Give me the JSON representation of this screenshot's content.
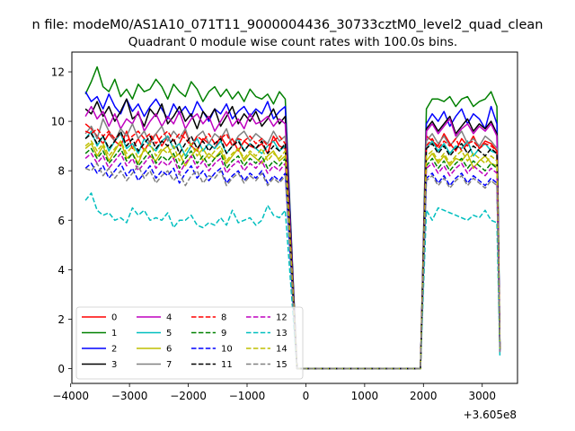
{
  "chart_data": {
    "type": "line",
    "suptitle": "n file: modeM0/AS1A10_071T11_9000004436_30733cztM0_level2_quad_clean",
    "title": "Quadrant 0 module wise count rates with 100.0s bins.",
    "xlabel": "",
    "ylabel": "",
    "offset_text": "+3.605e8",
    "xlim": [
      -3980,
      3600
    ],
    "ylim": [
      -0.6,
      12.8
    ],
    "x_ticks": [
      -4000,
      -3000,
      -2000,
      -1000,
      0,
      1000,
      2000,
      3000
    ],
    "x_tick_labels": [
      "−4000",
      "−3000",
      "−2000",
      "−1000",
      "0",
      "1000",
      "2000",
      "3000"
    ],
    "y_ticks": [
      0,
      2,
      4,
      6,
      8,
      10,
      12
    ],
    "y_tick_labels": [
      "0",
      "2",
      "4",
      "6",
      "8",
      "10",
      "12"
    ],
    "grid": false,
    "legend_position": "lower-left",
    "legend_columns": 4,
    "segments": {
      "first": {
        "x_start": -3750,
        "step": 100,
        "count": 35
      },
      "gap": {
        "x_start": -150,
        "x_end": 1950,
        "value": 0
      },
      "second": {
        "x_start": 2050,
        "step": 100,
        "count": 13
      }
    },
    "series": [
      {
        "name": "0",
        "color": "#ff0000",
        "dash": false,
        "seg1": [
          9.9,
          9.7,
          9.4,
          9.1,
          9.5,
          9.2,
          9.0,
          9.6,
          8.9,
          9.3,
          8.8,
          9.2,
          9.5,
          9.0,
          9.4,
          8.9,
          9.1,
          9.6,
          9.0,
          8.8,
          9.3,
          9.1,
          8.9,
          9.4,
          9.0,
          9.3,
          8.8,
          9.2,
          9.0,
          8.9,
          9.1,
          8.7,
          9.4,
          9.0,
          8.9
        ],
        "seg2": [
          9.4,
          9.2,
          9.0,
          9.5,
          9.1,
          8.8,
          9.3,
          9.0,
          9.4,
          8.9,
          9.2,
          9.1,
          8.8
        ]
      },
      {
        "name": "1",
        "color": "#008000",
        "dash": false,
        "seg1": [
          11.1,
          11.6,
          12.2,
          11.4,
          11.2,
          11.7,
          11.0,
          11.3,
          10.9,
          11.5,
          11.2,
          11.3,
          11.7,
          11.4,
          10.9,
          11.5,
          11.2,
          11.0,
          11.6,
          11.3,
          10.8,
          11.2,
          11.4,
          11.0,
          11.3,
          10.9,
          11.2,
          10.8,
          11.3,
          11.0,
          10.9,
          11.1,
          10.7,
          11.2,
          10.9
        ],
        "seg2": [
          10.5,
          10.9,
          10.9,
          10.8,
          11.0,
          10.6,
          10.9,
          11.0,
          10.6,
          10.8,
          10.9,
          11.2,
          10.6
        ]
      },
      {
        "name": "2",
        "color": "#0000ff",
        "dash": false,
        "seg1": [
          11.2,
          10.8,
          11.0,
          10.5,
          11.1,
          10.6,
          10.3,
          10.9,
          10.4,
          10.7,
          10.2,
          10.6,
          10.9,
          10.5,
          10.1,
          10.7,
          10.3,
          10.6,
          10.2,
          10.8,
          10.4,
          10.0,
          10.5,
          10.3,
          10.7,
          10.1,
          10.4,
          10.6,
          10.2,
          10.5,
          10.3,
          10.8,
          10.1,
          10.4,
          10.6
        ],
        "seg2": [
          9.9,
          10.3,
          10.0,
          10.4,
          9.8,
          10.2,
          10.5,
          9.9,
          10.3,
          10.1,
          9.7,
          10.6,
          9.9
        ]
      },
      {
        "name": "3",
        "color": "#000000",
        "dash": false,
        "seg1": [
          10.5,
          10.3,
          10.8,
          10.2,
          10.6,
          10.0,
          10.4,
          10.9,
          10.1,
          10.3,
          9.8,
          10.5,
          10.2,
          10.7,
          9.9,
          10.2,
          10.6,
          10.0,
          10.3,
          9.7,
          10.4,
          10.1,
          10.5,
          9.8,
          10.2,
          10.6,
          9.9,
          10.3,
          10.0,
          10.4,
          9.8,
          10.1,
          10.5,
          9.9,
          10.2
        ],
        "seg2": [
          9.7,
          10.0,
          9.6,
          9.9,
          10.2,
          9.5,
          9.8,
          10.1,
          9.6,
          9.9,
          9.7,
          10.0,
          9.5
        ]
      },
      {
        "name": "4",
        "color": "#bf00bf",
        "dash": false,
        "seg1": [
          10.2,
          10.6,
          10.1,
          10.4,
          9.8,
          10.3,
          9.7,
          10.1,
          9.9,
          10.4,
          9.6,
          10.0,
          10.3,
          9.8,
          10.2,
          9.9,
          10.4,
          9.7,
          10.1,
          10.3,
          9.9,
          10.2,
          9.6,
          10.0,
          10.4,
          9.8,
          10.1,
          9.7,
          10.3,
          9.9,
          10.0,
          10.2,
          9.8,
          10.1,
          9.9
        ],
        "seg2": [
          9.6,
          9.9,
          9.5,
          9.8,
          10.1,
          9.4,
          9.7,
          9.9,
          9.5,
          9.8,
          9.6,
          9.9,
          9.4
        ]
      },
      {
        "name": "5",
        "color": "#00bfbf",
        "dash": false,
        "seg1": [
          9.3,
          9.6,
          9.0,
          9.4,
          8.8,
          9.2,
          9.5,
          8.9,
          9.1,
          8.7,
          9.3,
          9.0,
          8.8,
          9.2,
          9.4,
          8.9,
          9.1,
          8.6,
          9.0,
          9.3,
          8.8,
          9.1,
          8.9,
          9.2,
          8.7,
          9.0,
          9.3,
          8.8,
          9.1,
          8.9,
          8.7,
          9.0,
          9.2,
          8.8,
          9.0
        ],
        "seg2": [
          8.9,
          9.2,
          8.8,
          9.1,
          8.7,
          9.0,
          8.9,
          9.2,
          8.6,
          8.9,
          9.1,
          8.8,
          8.7
        ]
      },
      {
        "name": "6",
        "color": "#bfbf00",
        "dash": false,
        "seg1": [
          8.9,
          9.1,
          8.6,
          9.0,
          8.4,
          8.8,
          9.2,
          8.5,
          8.7,
          8.3,
          8.9,
          8.6,
          8.4,
          8.8,
          9.0,
          8.5,
          8.7,
          8.2,
          8.6,
          8.9,
          8.4,
          8.7,
          8.5,
          8.8,
          8.3,
          8.6,
          8.9,
          8.4,
          8.7,
          8.5,
          8.3,
          8.6,
          8.8,
          8.4,
          8.6
        ],
        "seg2": [
          8.4,
          8.7,
          8.3,
          8.6,
          8.2,
          8.5,
          8.4,
          8.7,
          8.1,
          8.4,
          8.6,
          8.3,
          8.2
        ]
      },
      {
        "name": "7",
        "color": "#808080",
        "dash": false,
        "seg1": [
          9.5,
          9.8,
          9.3,
          10.1,
          9.6,
          9.2,
          9.7,
          9.4,
          9.9,
          9.3,
          9.6,
          9.1,
          9.5,
          9.8,
          9.2,
          9.6,
          9.3,
          9.7,
          9.0,
          9.4,
          9.6,
          9.1,
          9.5,
          9.3,
          9.7,
          9.0,
          9.4,
          9.6,
          9.2,
          9.5,
          9.3,
          9.1,
          9.6,
          9.2,
          9.4
        ],
        "seg2": [
          9.2,
          9.5,
          9.1,
          9.4,
          9.0,
          9.3,
          9.6,
          9.1,
          9.3,
          9.0,
          9.4,
          9.2,
          8.9
        ]
      },
      {
        "name": "8",
        "color": "#ff0000",
        "dash": true,
        "seg1": [
          9.6,
          9.5,
          9.7,
          9.4,
          9.6,
          9.3,
          9.5,
          9.2,
          9.4,
          9.6,
          9.3,
          9.5,
          9.1,
          9.4,
          9.6,
          9.2,
          9.5,
          9.3,
          9.0,
          9.4,
          9.2,
          9.5,
          9.1,
          9.3,
          9.5,
          9.0,
          9.3,
          9.2,
          9.4,
          9.1,
          9.3,
          9.0,
          9.2,
          9.4,
          9.1
        ],
        "seg2": [
          9.0,
          9.3,
          8.9,
          9.2,
          9.0,
          9.3,
          8.8,
          9.1,
          9.2,
          8.9,
          9.1,
          9.0,
          8.8
        ]
      },
      {
        "name": "9",
        "color": "#008000",
        "dash": true,
        "seg1": [
          8.7,
          8.9,
          8.5,
          8.8,
          8.3,
          8.6,
          8.9,
          8.4,
          8.7,
          8.2,
          8.5,
          8.8,
          8.3,
          8.6,
          8.4,
          8.7,
          8.1,
          8.5,
          8.8,
          8.3,
          8.6,
          8.2,
          8.5,
          8.7,
          8.1,
          8.4,
          8.6,
          8.2,
          8.5,
          8.3,
          8.6,
          8.1,
          8.4,
          8.2,
          8.5
        ],
        "seg2": [
          8.2,
          8.5,
          8.1,
          8.4,
          8.0,
          8.3,
          8.5,
          8.1,
          8.4,
          8.2,
          8.0,
          8.3,
          8.1
        ]
      },
      {
        "name": "10",
        "color": "#0000ff",
        "dash": true,
        "seg1": [
          8.1,
          8.3,
          7.9,
          8.2,
          7.7,
          8.0,
          8.3,
          7.8,
          8.1,
          7.6,
          7.9,
          8.2,
          7.7,
          8.0,
          7.8,
          8.1,
          7.5,
          7.9,
          8.2,
          7.7,
          8.0,
          7.6,
          7.9,
          8.1,
          7.5,
          7.8,
          8.0,
          7.6,
          7.9,
          7.7,
          8.0,
          7.5,
          7.8,
          7.6,
          7.9
        ],
        "seg2": [
          7.7,
          7.9,
          7.5,
          7.8,
          7.4,
          7.7,
          7.9,
          7.5,
          7.8,
          7.6,
          7.4,
          7.7,
          7.5
        ]
      },
      {
        "name": "11",
        "color": "#000000",
        "dash": true,
        "seg1": [
          9.3,
          9.5,
          9.1,
          9.4,
          8.9,
          9.2,
          9.6,
          9.0,
          9.3,
          8.8,
          9.1,
          9.4,
          8.9,
          9.2,
          9.0,
          9.3,
          8.7,
          9.1,
          9.4,
          8.9,
          9.2,
          8.8,
          9.1,
          9.3,
          8.7,
          9.0,
          9.2,
          8.8,
          9.1,
          8.9,
          9.2,
          8.7,
          9.0,
          8.8,
          9.1
        ],
        "seg2": [
          8.9,
          9.1,
          8.7,
          9.0,
          8.6,
          8.9,
          9.1,
          8.7,
          9.0,
          8.8,
          8.6,
          8.9,
          8.7
        ]
      },
      {
        "name": "12",
        "color": "#bf00bf",
        "dash": true,
        "seg1": [
          8.5,
          8.7,
          8.3,
          8.6,
          8.1,
          8.4,
          8.7,
          8.2,
          8.5,
          8.0,
          8.3,
          8.6,
          8.1,
          8.4,
          8.2,
          8.5,
          7.9,
          8.3,
          8.6,
          8.1,
          8.4,
          8.0,
          8.3,
          8.5,
          7.9,
          8.2,
          8.4,
          8.0,
          8.3,
          8.1,
          8.4,
          7.9,
          8.2,
          8.0,
          8.3
        ],
        "seg2": [
          8.1,
          8.3,
          7.9,
          8.2,
          7.8,
          8.1,
          8.3,
          7.9,
          8.2,
          8.0,
          7.8,
          8.1,
          7.9
        ]
      },
      {
        "name": "13",
        "color": "#00bfbf",
        "dash": true,
        "seg1": [
          6.8,
          7.1,
          6.4,
          6.2,
          6.3,
          6.0,
          6.1,
          5.9,
          6.5,
          6.2,
          6.4,
          6.0,
          6.1,
          6.0,
          6.3,
          5.7,
          6.0,
          6.0,
          6.2,
          5.8,
          5.7,
          5.9,
          5.8,
          6.1,
          5.8,
          6.4,
          5.9,
          6.0,
          6.1,
          5.8,
          6.0,
          6.6,
          6.2,
          6.1,
          6.4
        ],
        "seg2": [
          6.4,
          6.0,
          6.5,
          6.4,
          6.3,
          6.2,
          6.1,
          6.0,
          6.2,
          6.1,
          6.4,
          6.0,
          5.9
        ]
      },
      {
        "name": "14",
        "color": "#bfbf00",
        "dash": true,
        "seg1": [
          9.0,
          9.2,
          8.8,
          9.1,
          8.6,
          8.9,
          9.2,
          8.7,
          9.0,
          8.5,
          8.8,
          9.1,
          8.6,
          8.9,
          8.7,
          9.0,
          8.4,
          8.8,
          9.1,
          8.6,
          8.9,
          8.5,
          8.8,
          9.0,
          8.4,
          8.7,
          8.9,
          8.5,
          8.8,
          8.6,
          8.9,
          8.4,
          8.7,
          8.5,
          8.8
        ],
        "seg2": [
          8.6,
          8.8,
          8.4,
          8.7,
          8.3,
          8.6,
          8.8,
          8.4,
          8.7,
          8.5,
          8.3,
          8.6,
          8.4
        ]
      },
      {
        "name": "15",
        "color": "#808080",
        "dash": true,
        "seg1": [
          8.1,
          8.0,
          8.3,
          7.8,
          8.1,
          7.7,
          8.0,
          7.6,
          7.9,
          8.2,
          7.7,
          8.0,
          7.5,
          7.8,
          8.0,
          7.6,
          7.9,
          7.4,
          7.8,
          8.0,
          7.5,
          7.8,
          7.7,
          8.0,
          7.4,
          7.7,
          7.9,
          7.5,
          7.8,
          7.6,
          7.9,
          7.4,
          7.7,
          7.5,
          7.8
        ],
        "seg2": [
          7.6,
          7.8,
          7.4,
          7.7,
          7.3,
          7.6,
          7.8,
          7.4,
          7.7,
          7.5,
          7.3,
          7.6,
          7.4
        ]
      }
    ]
  }
}
